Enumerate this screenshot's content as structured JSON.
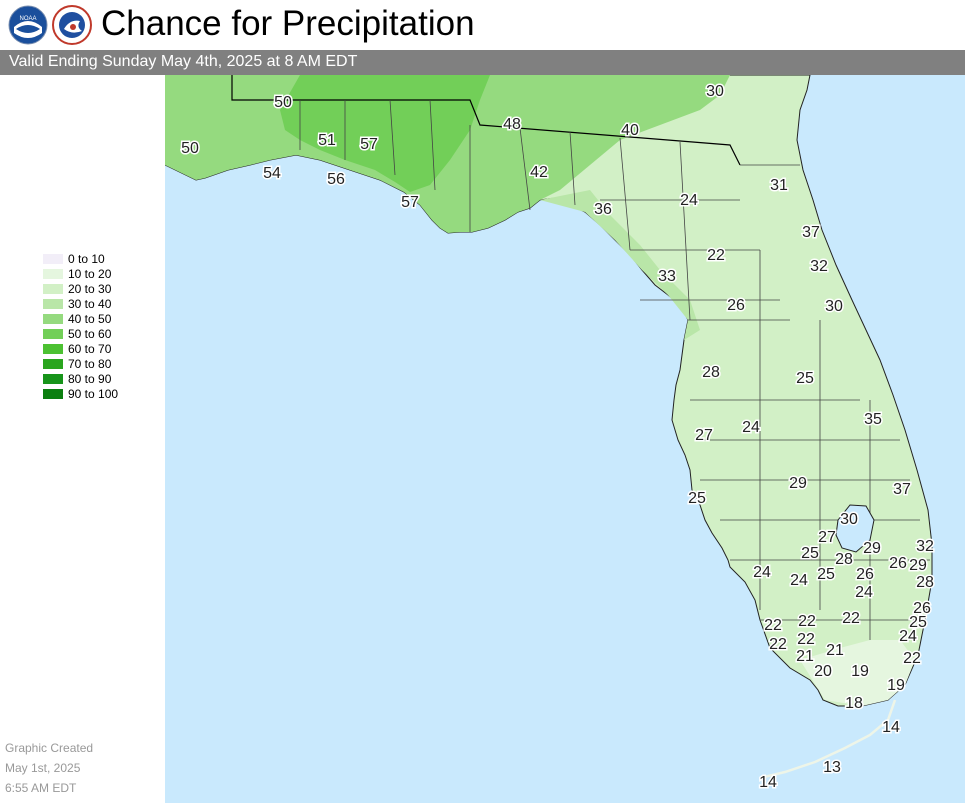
{
  "header": {
    "title": "Chance for Precipitation",
    "valid": "Valid Ending Sunday May 4th, 2025 at 8 AM EDT",
    "logos": [
      "noaa-logo",
      "nws-logo"
    ]
  },
  "legend": [
    {
      "label": "0 to 10",
      "color": "#f2eef8"
    },
    {
      "label": "10 to 20",
      "color": "#e5f6df"
    },
    {
      "label": "20 to 30",
      "color": "#d2f0c6"
    },
    {
      "label": "30 to 40",
      "color": "#b9e6a8"
    },
    {
      "label": "40 to 50",
      "color": "#95da7f"
    },
    {
      "label": "50 to 60",
      "color": "#72cf58"
    },
    {
      "label": "60 to 70",
      "color": "#4cc132"
    },
    {
      "label": "70 to 80",
      "color": "#2aa51e"
    },
    {
      "label": "80 to 90",
      "color": "#17941a"
    },
    {
      "label": "90 to 100",
      "color": "#0b7f10"
    }
  ],
  "created": {
    "line1": "Graphic Created",
    "line2": "May 1st, 2025",
    "line3": "6:55 AM EDT"
  },
  "map": {
    "water_color": "#c9e9fd",
    "values": [
      "50",
      "30",
      "48",
      "40",
      "50",
      "51",
      "57",
      "54",
      "56",
      "57",
      "42",
      "31",
      "36",
      "24",
      "37",
      "22",
      "32",
      "33",
      "26",
      "30",
      "28",
      "25",
      "35",
      "27",
      "24",
      "25",
      "29",
      "37",
      "30",
      "27",
      "25",
      "28",
      "29",
      "26",
      "29",
      "32",
      "24",
      "24",
      "25",
      "26",
      "28",
      "24",
      "26",
      "22",
      "22",
      "25",
      "22",
      "22",
      "22",
      "21",
      "24",
      "21",
      "20",
      "19",
      "22",
      "18",
      "19",
      "14",
      "13",
      "14"
    ]
  }
}
